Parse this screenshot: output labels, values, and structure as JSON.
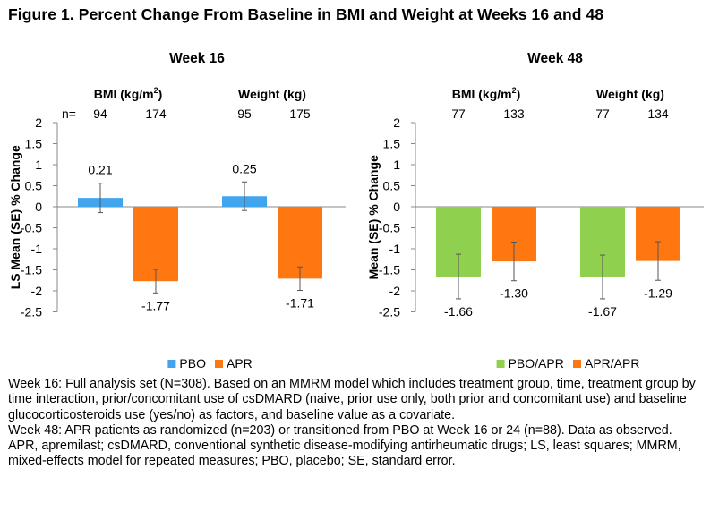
{
  "figure": {
    "title": "Figure 1. Percent Change From Baseline in BMI and Weight at Weeks 16 and 48"
  },
  "chart_data": [
    {
      "type": "bar",
      "title": "Week 16",
      "ylabel": "LS Mean (SE) % Change",
      "ylim": [
        -2.5,
        2
      ],
      "yticks": [
        "2",
        "1.5",
        "1",
        "0.5",
        "0",
        "-0.5",
        "-1",
        "-1.5",
        "-2",
        "-2.5"
      ],
      "n_label": "n=",
      "groups": [
        {
          "label": "BMI (kg/m",
          "sup": "2",
          "label_end": ")",
          "bars": [
            {
              "series": "PBO",
              "n": "94",
              "value": 0.21,
              "se": 0.35,
              "value_label": "0.21"
            },
            {
              "series": "APR",
              "n": "174",
              "value": -1.77,
              "se": 0.28,
              "value_label": "-1.77"
            }
          ]
        },
        {
          "label": "Weight (kg)",
          "sup": "",
          "label_end": "",
          "bars": [
            {
              "series": "PBO",
              "n": "95",
              "value": 0.25,
              "se": 0.34,
              "value_label": "0.25"
            },
            {
              "series": "APR",
              "n": "175",
              "value": -1.71,
              "se": 0.28,
              "value_label": "-1.71"
            }
          ]
        }
      ],
      "legend": [
        {
          "name": "PBO",
          "color": "#41A5EE"
        },
        {
          "name": "APR",
          "color": "#FF7711"
        }
      ],
      "legend_position": "bottom"
    },
    {
      "type": "bar",
      "title": "Week 48",
      "ylabel": "Mean (SE) % Change",
      "ylim": [
        -2.5,
        2
      ],
      "yticks": [
        "2",
        "1.5",
        "1",
        "0.5",
        "0",
        "-0.5",
        "-1",
        "-1.5",
        "-2",
        "-2.5"
      ],
      "n_label": "",
      "groups": [
        {
          "label": "BMI (kg/m",
          "sup": "2",
          "label_end": ")",
          "bars": [
            {
              "series": "PBO/APR",
              "n": "77",
              "value": -1.66,
              "se": 0.53,
              "value_label": "-1.66"
            },
            {
              "series": "APR/APR",
              "n": "133",
              "value": -1.3,
              "se": 0.46,
              "value_label": "-1.30"
            }
          ]
        },
        {
          "label": "Weight (kg)",
          "sup": "",
          "label_end": "",
          "bars": [
            {
              "series": "PBO/APR",
              "n": "77",
              "value": -1.67,
              "se": 0.52,
              "value_label": "-1.67"
            },
            {
              "series": "APR/APR",
              "n": "134",
              "value": -1.29,
              "se": 0.46,
              "value_label": "-1.29"
            }
          ]
        }
      ],
      "legend": [
        {
          "name": "PBO/APR",
          "color": "#8FD14F"
        },
        {
          "name": "APR/APR",
          "color": "#FF7711"
        }
      ],
      "legend_position": "bottom"
    }
  ],
  "footnotes": {
    "week16": "Week 16: Full analysis set (N=308). Based on an MMRM model which includes treatment group, time, treatment group by time interaction, prior/concomitant use of csDMARD (naive, prior use only, both prior and concomitant use) and baseline glucocorticosteroids use (yes/no) as factors, and baseline value as a covariate.",
    "week48": "Week 48: APR patients as randomized (n=203) or transitioned from PBO at Week 16 or 24 (n=88). Data as observed.",
    "abbreviations": "APR, apremilast; csDMARD, conventional synthetic disease-modifying antirheumatic drugs; LS, least squares; MMRM, mixed-effects model for repeated measures; PBO, placebo; SE, standard error."
  }
}
